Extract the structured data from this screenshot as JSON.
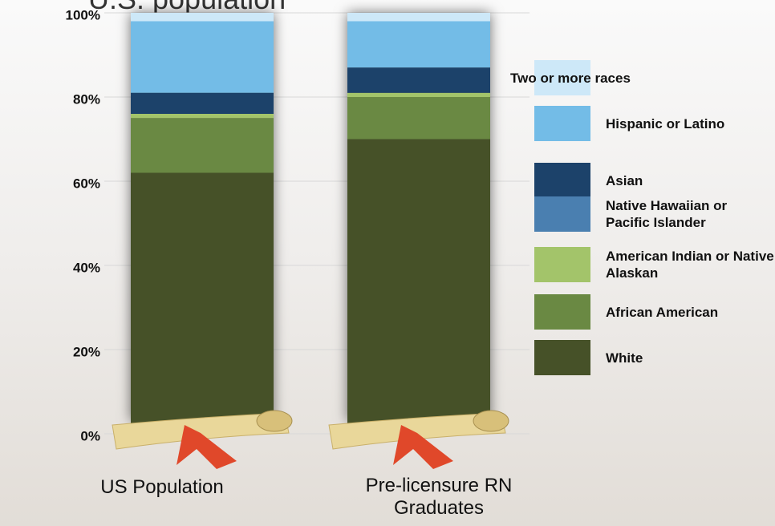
{
  "chart_data": {
    "type": "stacked_bar",
    "title": "U.S. population",
    "categories": [
      "US Population",
      "Pre-licensure RN Graduates"
    ],
    "series": [
      {
        "name": "White",
        "color": "#465128",
        "values": [
          62,
          70
        ]
      },
      {
        "name": "African American",
        "color": "#6a8943",
        "values": [
          13,
          10
        ]
      },
      {
        "name": "American Indian or Native Alaskan",
        "color": "#a3c46a",
        "values": [
          1,
          1
        ]
      },
      {
        "name": "Native Hawaiian or Pacific Islander",
        "color": "#4a7fb0",
        "values": [
          0,
          0
        ]
      },
      {
        "name": "Asian",
        "color": "#1c426a",
        "values": [
          5,
          6
        ]
      },
      {
        "name": "Hispanic or Latino",
        "color": "#73bce7",
        "values": [
          17,
          11
        ]
      },
      {
        "name": "Two or more races",
        "color": "#cde8f8",
        "values": [
          2,
          2
        ]
      }
    ],
    "ylim": [
      0,
      100
    ],
    "yticks": [
      {
        "value": 0,
        "label": "0%"
      },
      {
        "value": 20,
        "label": "20%"
      },
      {
        "value": 40,
        "label": "40%"
      },
      {
        "value": 60,
        "label": "60%"
      },
      {
        "value": 80,
        "label": "80%"
      },
      {
        "value": 100,
        "label": "100%"
      }
    ],
    "grid": true
  }
}
